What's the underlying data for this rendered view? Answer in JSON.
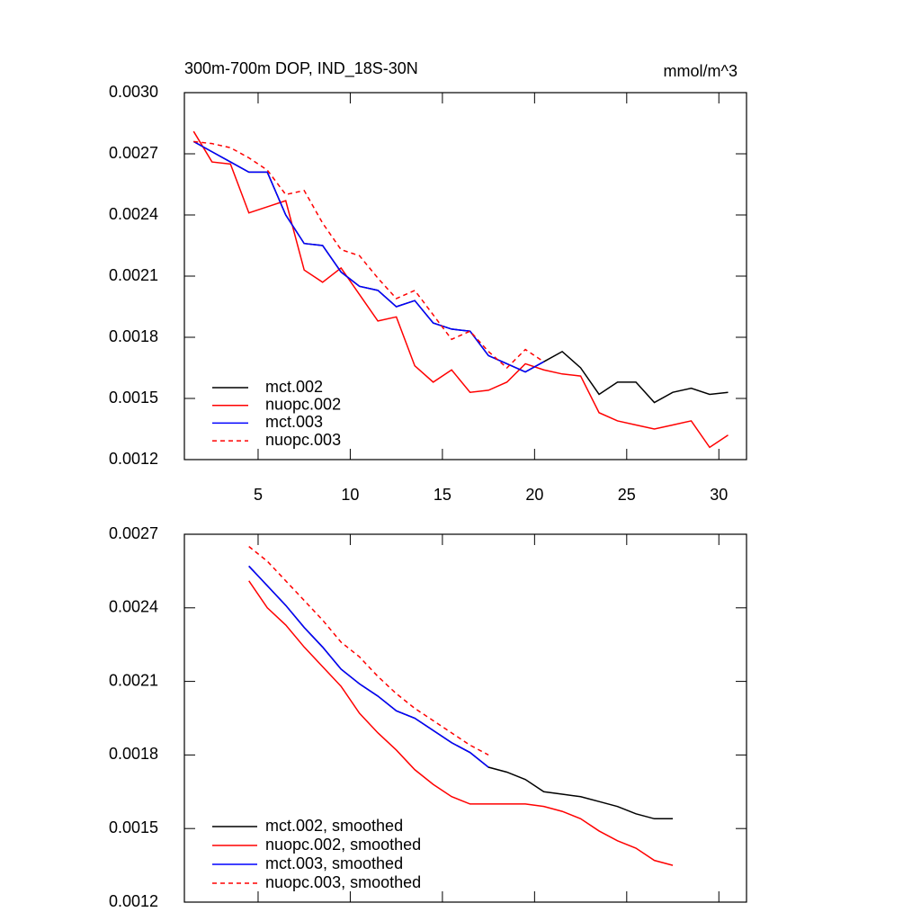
{
  "chart_data": [
    {
      "type": "line",
      "title": "300m-700m DOP, IND_18S-30N",
      "unit_label": "mmol/m^3",
      "x": [
        1.5,
        2.5,
        3.5,
        4.5,
        5.5,
        6.5,
        7.5,
        8.5,
        9.5,
        10.5,
        11.5,
        12.5,
        13.5,
        14.5,
        15.5,
        16.5,
        17.5,
        18.5,
        19.5,
        20.5,
        21.5,
        22.5,
        23.5,
        24.5,
        25.5,
        26.5,
        27.5,
        28.5,
        29.5,
        30.5
      ],
      "xlim": [
        1,
        31.5
      ],
      "xticks": [
        5,
        10,
        15,
        20,
        25,
        30
      ],
      "show_xtick_labels": true,
      "ylim": [
        0.0012,
        0.003
      ],
      "yticks": [
        {
          "value": 0.0012,
          "label": "0.0012"
        },
        0.0015,
        0.0018,
        0.0021,
        0.0024,
        0.0027,
        {
          "value": 0.003,
          "label": "0.0030"
        }
      ],
      "series": [
        {
          "name": "mct.002",
          "color": "#000000",
          "dash": false,
          "values": [
            0.00276,
            0.00271,
            0.00266,
            0.00261,
            0.00261,
            0.0024,
            0.00226,
            0.00225,
            0.00212,
            0.00205,
            0.00203,
            0.00195,
            0.00198,
            0.00187,
            0.00184,
            0.00183,
            0.00171,
            0.00167,
            0.00163,
            0.00168,
            0.00173,
            0.00165,
            0.00152,
            0.00158,
            0.00158,
            0.00148,
            0.00153,
            0.00155,
            0.00152,
            0.00153
          ]
        },
        {
          "name": "nuopc.002",
          "color": "#ff0000",
          "dash": false,
          "values": [
            0.00281,
            0.00266,
            0.00265,
            0.00241,
            0.00244,
            0.00247,
            0.00213,
            0.00207,
            0.00214,
            0.00201,
            0.00188,
            0.0019,
            0.00166,
            0.00158,
            0.00164,
            0.00153,
            0.00154,
            0.00158,
            0.00167,
            0.00164,
            0.00162,
            0.00161,
            0.00143,
            0.00139,
            0.00137,
            0.00135,
            0.00137,
            0.00139,
            0.00126,
            0.00132
          ]
        },
        {
          "name": "mct.003",
          "color": "#0000ff",
          "dash": false,
          "values": [
            0.00276,
            0.00271,
            0.00266,
            0.00261,
            0.00261,
            0.0024,
            0.00226,
            0.00225,
            0.00212,
            0.00205,
            0.00203,
            0.00195,
            0.00198,
            0.00187,
            0.00184,
            0.00183,
            0.00171,
            0.00167,
            0.00163,
            0.00168,
            null,
            null,
            null,
            null,
            null,
            null,
            null,
            null,
            null,
            null
          ]
        },
        {
          "name": "nuopc.003",
          "color": "#ff0000",
          "dash": true,
          "values": [
            0.00276,
            0.00275,
            0.00273,
            0.00268,
            0.00262,
            0.0025,
            0.00252,
            0.00236,
            0.00223,
            0.0022,
            0.00209,
            0.00199,
            0.00203,
            0.00191,
            0.00179,
            0.00183,
            0.00173,
            0.00165,
            0.00174,
            0.00168,
            null,
            null,
            null,
            null,
            null,
            null,
            null,
            null,
            null,
            null
          ]
        }
      ]
    },
    {
      "type": "line",
      "x": [
        1.5,
        2.5,
        3.5,
        4.5,
        5.5,
        6.5,
        7.5,
        8.5,
        9.5,
        10.5,
        11.5,
        12.5,
        13.5,
        14.5,
        15.5,
        16.5,
        17.5,
        18.5,
        19.5,
        20.5,
        21.5,
        22.5,
        23.5,
        24.5,
        25.5,
        26.5,
        27.5,
        28.5,
        29.5,
        30.5
      ],
      "xlim": [
        1,
        31.5
      ],
      "xticks": [
        5,
        10,
        15,
        20,
        25,
        30
      ],
      "show_xtick_labels": false,
      "ylim": [
        0.0012,
        0.0027
      ],
      "yticks": [
        0.0012,
        0.0015,
        0.0018,
        0.0021,
        0.0024,
        0.0027
      ],
      "series": [
        {
          "name": "mct.002, smoothed",
          "color": "#000000",
          "dash": false,
          "values": [
            null,
            null,
            null,
            0.00257,
            0.00249,
            0.00241,
            0.00232,
            0.00224,
            0.00215,
            0.00209,
            0.00204,
            0.00198,
            0.00195,
            0.0019,
            0.00185,
            0.00181,
            0.00175,
            0.00173,
            0.0017,
            0.00165,
            0.00164,
            0.00163,
            0.00161,
            0.00159,
            0.00156,
            0.00154,
            0.00154,
            null,
            null,
            null
          ]
        },
        {
          "name": "nuopc.002, smoothed",
          "color": "#ff0000",
          "dash": false,
          "values": [
            null,
            null,
            null,
            0.00251,
            0.0024,
            0.00233,
            0.00224,
            0.00216,
            0.00208,
            0.00197,
            0.00189,
            0.00182,
            0.00174,
            0.00168,
            0.00163,
            0.0016,
            0.0016,
            0.0016,
            0.0016,
            0.00159,
            0.00157,
            0.00154,
            0.00149,
            0.00145,
            0.00142,
            0.00137,
            0.00135,
            null,
            null,
            null
          ]
        },
        {
          "name": "mct.003, smoothed",
          "color": "#0000ff",
          "dash": false,
          "values": [
            null,
            null,
            null,
            0.00257,
            0.00249,
            0.00241,
            0.00232,
            0.00224,
            0.00215,
            0.00209,
            0.00204,
            0.00198,
            0.00195,
            0.0019,
            0.00185,
            0.00181,
            0.00175,
            null,
            null,
            null,
            null,
            null,
            null,
            null,
            null,
            null,
            null,
            null,
            null,
            null
          ]
        },
        {
          "name": "nuopc.003, smoothed",
          "color": "#ff0000",
          "dash": true,
          "values": [
            null,
            null,
            null,
            0.00265,
            0.00259,
            0.00251,
            0.00243,
            0.00235,
            0.00226,
            0.0022,
            0.00212,
            0.00205,
            0.00199,
            0.00194,
            0.00189,
            0.00184,
            0.0018,
            null,
            null,
            null,
            null,
            null,
            null,
            null,
            null,
            null,
            null,
            null,
            null,
            null
          ]
        }
      ]
    }
  ]
}
